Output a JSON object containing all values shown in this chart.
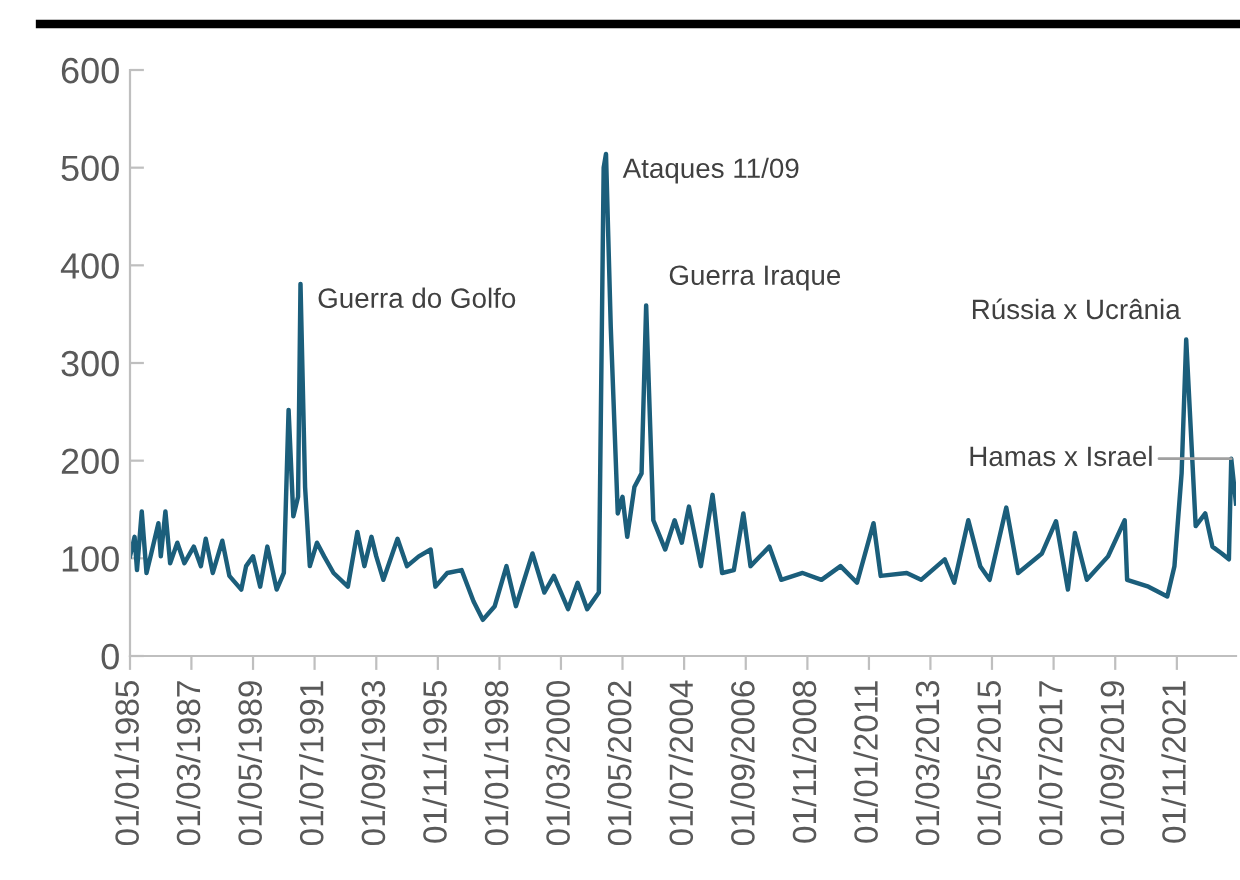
{
  "chart_data": {
    "type": "line",
    "line_style": "solid",
    "marker": "none",
    "grid": false,
    "x": [
      "1985-01",
      "1985-03",
      "1985-04",
      "1985-06",
      "1985-08",
      "1985-10",
      "1986-01",
      "1986-02",
      "1986-04",
      "1986-06",
      "1986-09",
      "1986-12",
      "1987-04",
      "1987-07",
      "1987-09",
      "1987-12",
      "1988-04",
      "1988-07",
      "1988-12",
      "1989-02",
      "1989-05",
      "1989-08",
      "1989-11",
      "1990-03",
      "1990-06",
      "1990-08",
      "1990-10",
      "1990-12",
      "1991-01",
      "1991-03",
      "1991-05",
      "1991-08",
      "1991-11",
      "1992-03",
      "1992-09",
      "1993-01",
      "1993-04",
      "1993-07",
      "1993-09",
      "1993-12",
      "1994-06",
      "1994-10",
      "1995-03",
      "1995-08",
      "1995-10",
      "1996-03",
      "1996-09",
      "1997-02",
      "1997-06",
      "1997-11",
      "1998-04",
      "1998-08",
      "1999-03",
      "1999-08",
      "1999-12",
      "2000-06",
      "2000-10",
      "2001-02",
      "2001-07",
      "2001-09",
      "2001-10",
      "2001-12",
      "2002-03",
      "2002-05",
      "2002-07",
      "2002-10",
      "2003-01",
      "2003-03",
      "2003-06",
      "2003-11",
      "2004-03",
      "2004-06",
      "2004-09",
      "2005-02",
      "2005-07",
      "2005-11",
      "2006-04",
      "2006-08",
      "2006-11",
      "2007-07",
      "2007-12",
      "2008-09",
      "2009-05",
      "2010-01",
      "2010-08",
      "2011-03",
      "2011-06",
      "2012-05",
      "2012-11",
      "2013-09",
      "2014-01",
      "2014-07",
      "2014-12",
      "2015-04",
      "2015-11",
      "2016-04",
      "2017-02",
      "2017-08",
      "2018-01",
      "2018-04",
      "2018-09",
      "2019-06",
      "2020-01",
      "2020-02",
      "2020-11",
      "2021-07",
      "2021-10",
      "2022-01",
      "2022-03",
      "2022-07",
      "2022-11",
      "2023-02",
      "2023-06",
      "2023-09",
      "2023-10",
      "2023-12"
    ],
    "series": [
      {
        "color": "#1b5e7b",
        "values": [
          102,
          122,
          88,
          148,
          85,
          105,
          136,
          102,
          148,
          95,
          116,
          95,
          112,
          92,
          120,
          85,
          118,
          82,
          68,
          92,
          102,
          71,
          112,
          68,
          85,
          252,
          143,
          163,
          381,
          173,
          92,
          116,
          102,
          85,
          71,
          127,
          92,
          122,
          102,
          78,
          120,
          92,
          102,
          109,
          71,
          85,
          88,
          56,
          37,
          51,
          92,
          51,
          105,
          65,
          82,
          48,
          75,
          48,
          65,
          500,
          514,
          337,
          146,
          163,
          122,
          173,
          187,
          359,
          139,
          109,
          139,
          116,
          153,
          92,
          165,
          85,
          88,
          146,
          92,
          112,
          78,
          85,
          78,
          92,
          75,
          136,
          82,
          85,
          78,
          99,
          75,
          139,
          92,
          78,
          152,
          85,
          105,
          138,
          68,
          126,
          78,
          102,
          139,
          78,
          71,
          61,
          92,
          187,
          324,
          133,
          146,
          112,
          105,
          99,
          202,
          156
        ]
      }
    ],
    "xlim": [
      "1985-01",
      "2023-12"
    ],
    "xticks": [
      {
        "value": "1985-01",
        "label": "01/01/1985"
      },
      {
        "value": "1987-03",
        "label": "01/03/1987"
      },
      {
        "value": "1989-05",
        "label": "01/05/1989"
      },
      {
        "value": "1991-07",
        "label": "01/07/1991"
      },
      {
        "value": "1993-09",
        "label": "01/09/1993"
      },
      {
        "value": "1995-11",
        "label": "01/11/1995"
      },
      {
        "value": "1998-01",
        "label": "01/01/1998"
      },
      {
        "value": "2000-03",
        "label": "01/03/2000"
      },
      {
        "value": "2002-05",
        "label": "01/05/2002"
      },
      {
        "value": "2004-07",
        "label": "01/07/2004"
      },
      {
        "value": "2006-09",
        "label": "01/09/2006"
      },
      {
        "value": "2008-11",
        "label": "01/11/2008"
      },
      {
        "value": "2011-01",
        "label": "01/01/2011"
      },
      {
        "value": "2013-03",
        "label": "01/03/2013"
      },
      {
        "value": "2015-05",
        "label": "01/05/2015"
      },
      {
        "value": "2017-07",
        "label": "01/07/2017"
      },
      {
        "value": "2019-09",
        "label": "01/09/2019"
      },
      {
        "value": "2021-11",
        "label": "01/11/2021"
      }
    ],
    "ylim": [
      0,
      600
    ],
    "yticks": [
      0,
      100,
      200,
      300,
      400,
      500,
      600
    ],
    "annotations": [
      {
        "text": "Guerra do Golfo",
        "x": "1991-01",
        "y": 381
      },
      {
        "text": "Ataques 11/09",
        "x": "2001-10",
        "y": 514
      },
      {
        "text": "Guerra Iraque",
        "x": "2003-03",
        "y": 359
      },
      {
        "text": "Rússia x Ucrânia",
        "x": "2022-03",
        "y": 324
      },
      {
        "text": "Hamas x Israel",
        "x": "2023-10",
        "y": 202
      }
    ]
  }
}
